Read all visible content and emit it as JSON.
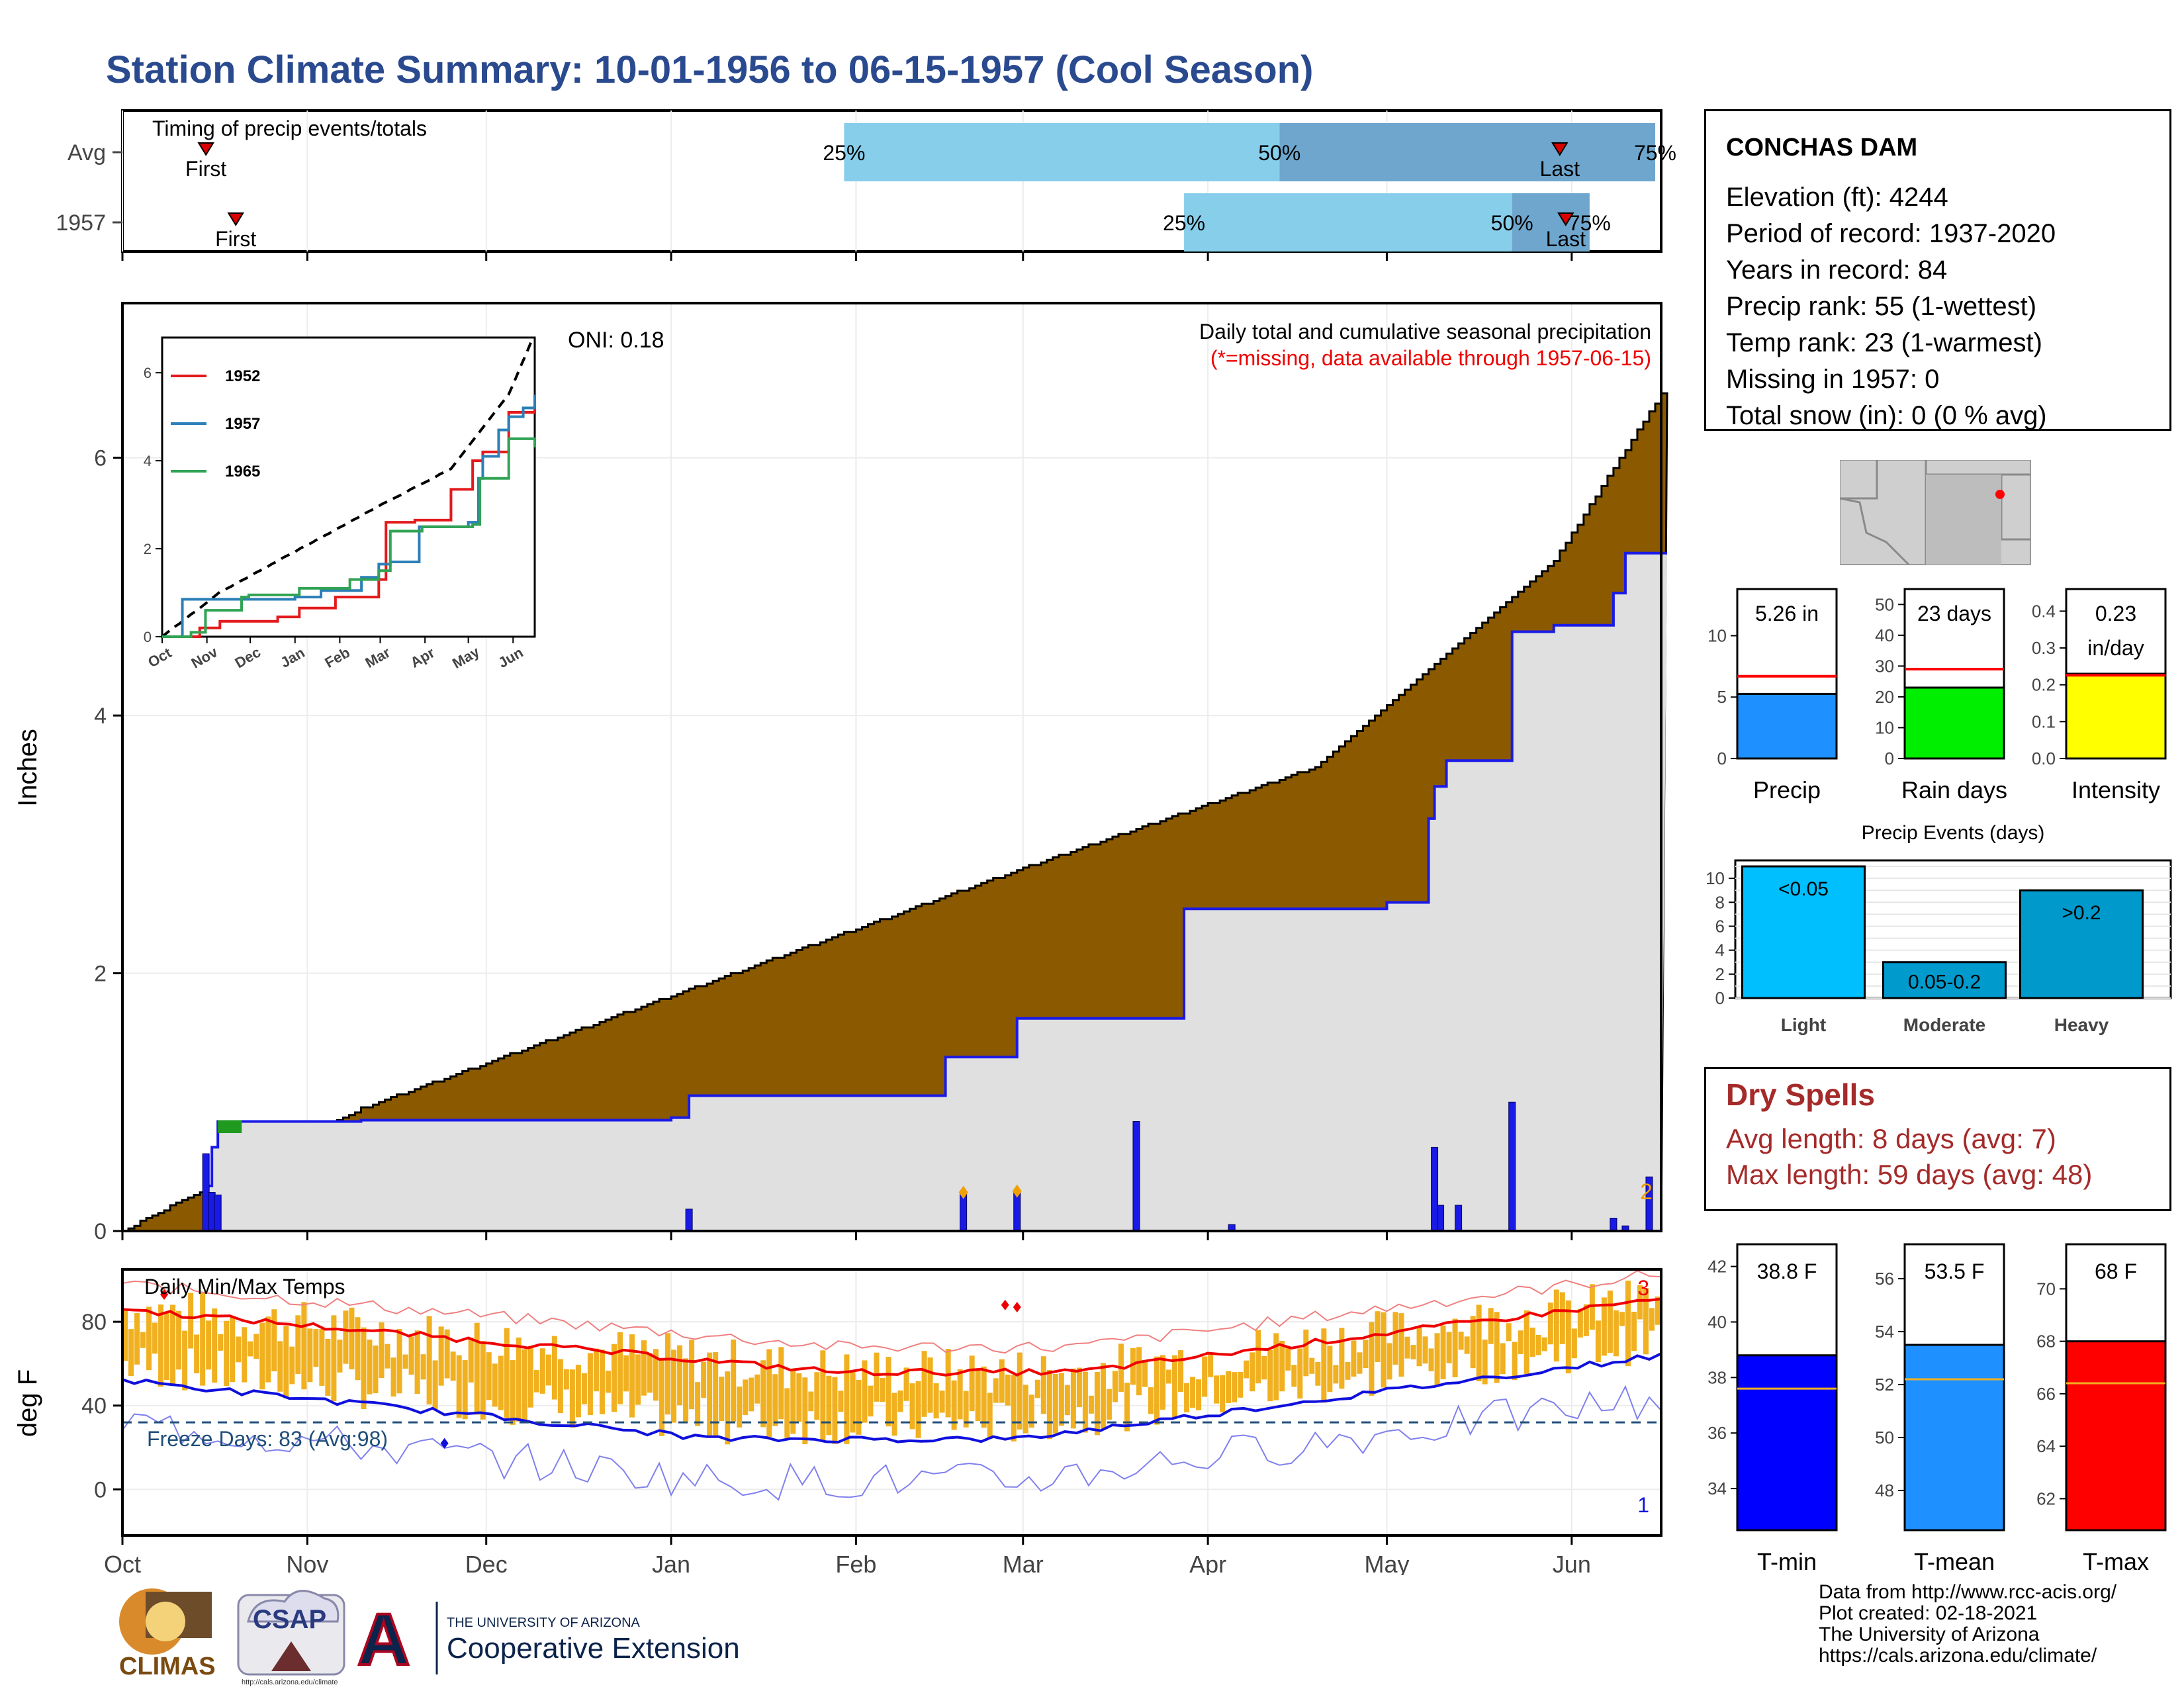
{
  "title": "Station Climate Summary: 10-01-1956 to 06-15-1957 (Cool Season)",
  "timing_panel": {
    "label": "Timing of precip events/totals",
    "rows": [
      {
        "name": "Avg",
        "first_label": "First",
        "last_label": "Last",
        "first_day": 14,
        "last_day": 241,
        "p25_day": 121,
        "p50_day": 194,
        "p75_day": 257,
        "p25_label": "25%",
        "p50_label": "50%",
        "p75_label": "75%"
      },
      {
        "name": "1957",
        "first_label": "First",
        "last_label": "Last",
        "first_day": 19,
        "last_day": 242,
        "p25_day": 178,
        "p50_day": 233,
        "p75_day": 246,
        "p25_label": "25%",
        "p50_label": "50%",
        "p75_label": "75%"
      }
    ],
    "colors": {
      "light": "#87ceeb",
      "dark": "#6ea6cd",
      "marker": "#d90000"
    }
  },
  "precip_panel": {
    "ylabel": "Inches",
    "yticks": [
      0,
      2,
      4,
      6
    ],
    "ylim": [
      0,
      7.2
    ],
    "title_line1": "Daily total and cumulative seasonal precipitation",
    "title_line2": "(*=missing, data available through 1957-06-15)",
    "oni": "ONI: 0.18",
    "count_label": "2",
    "colors": {
      "avg_fill": "#8b5a00",
      "year_fill": "#e0e0e0",
      "year_line": "#1a1ae6",
      "surplus_fill": "#1f9a1f",
      "missing_marker": "#f0a000"
    }
  },
  "inset": {
    "x_labels": [
      "Oct",
      "Nov",
      "Dec",
      "Jan",
      "Feb",
      "Mar",
      "Apr",
      "May",
      "Jun"
    ],
    "y_ticks": [
      0,
      2,
      4,
      6
    ],
    "legend": [
      {
        "name": "1952",
        "color": "#e31a1c"
      },
      {
        "name": "1957",
        "color": "#2c7fb8"
      },
      {
        "name": "1965",
        "color": "#31a354"
      }
    ]
  },
  "temp_panel": {
    "ylabel": "deg F",
    "yticks": [
      0,
      40,
      80
    ],
    "ylim": [
      -22,
      105
    ],
    "label": "Daily Min/Max Temps",
    "freeze_label": "Freeze Days: 83 (Avg:98)",
    "max_count_label": "3",
    "min_count_label": "1",
    "freeze_line": 32,
    "month_labels": [
      "Oct",
      "Nov",
      "Dec",
      "Jan",
      "Feb",
      "Mar",
      "Apr",
      "May",
      "Jun"
    ],
    "colors": {
      "bars": "#f0b020",
      "avg_max": "#ee0000",
      "avg_min": "#1010dd",
      "rec_max": "#f08080",
      "rec_min": "#8080ee",
      "freeze": "#1f4e79"
    }
  },
  "station": {
    "name": "CONCHAS DAM",
    "lines": [
      "Elevation (ft): 4244",
      "Period of record: 1937-2020",
      "Years in record: 84",
      "Precip rank: 55 (1-wettest)",
      "Temp rank: 23 (1-warmest)",
      "Missing in 1957: 0",
      "Total snow (in): 0 (0 % avg)"
    ]
  },
  "small_bars": [
    {
      "label": "Precip",
      "value": 5.26,
      "value_text": "5.26 in",
      "avg": 6.7,
      "ylim": [
        0,
        13.8
      ],
      "ticks": [
        0,
        5,
        10
      ],
      "color": "#1e90ff"
    },
    {
      "label": "Rain days",
      "value": 23,
      "value_text": "23 days",
      "avg": 29,
      "ylim": [
        0,
        55
      ],
      "ticks": [
        0,
        10,
        20,
        30,
        40,
        50
      ],
      "color": "#00ee00"
    },
    {
      "label": "Intensity",
      "value": 0.23,
      "value_text": "0.23 in/day",
      "avg": 0.226,
      "ylim": [
        0,
        0.46
      ],
      "ticks": [
        "0.0",
        "0.1",
        "0.2",
        "0.3",
        "0.4"
      ],
      "color": "#ffff00"
    }
  ],
  "precip_events": {
    "title": "Precip Events (days)",
    "categories": [
      "Light",
      "Moderate",
      "Heavy"
    ],
    "bar_labels": [
      "<0.05",
      "0.05-0.2",
      ">0.2"
    ],
    "values": [
      11,
      3,
      9
    ],
    "ticks": [
      0,
      2,
      4,
      6,
      8,
      10
    ],
    "ylim": [
      0,
      11.5
    ],
    "colors": [
      "#00bfff",
      "#009acd",
      "#0099cc"
    ]
  },
  "dry_spells": {
    "title": "Dry Spells",
    "avg_line": "Avg length: 8 days (avg: 7)",
    "max_line": "Max length: 59 days (avg: 48)"
  },
  "temp_bars": [
    {
      "label": "T-min",
      "value": 38.8,
      "value_text": "38.8 F",
      "avg": 37.6,
      "ylim": [
        32.5,
        42.8
      ],
      "ticks": [
        34,
        36,
        38,
        40,
        42
      ],
      "color": "#0000ff"
    },
    {
      "label": "T-mean",
      "value": 53.5,
      "value_text": "53.5 F",
      "avg": 52.2,
      "ylim": [
        46.5,
        57.3
      ],
      "ticks": [
        48,
        50,
        52,
        54,
        56
      ],
      "color": "#1e90ff"
    },
    {
      "label": "T-max",
      "value": 68,
      "value_text": "68 F",
      "avg": 66.4,
      "ylim": [
        60.8,
        71.7
      ],
      "ticks": [
        62,
        64,
        66,
        68,
        70
      ],
      "color": "#ff0000"
    }
  ],
  "credits": [
    "Data from http://www.rcc-acis.org/",
    "Plot created: 02-18-2021",
    "The University of Arizona",
    "https://cals.arizona.edu/climate/"
  ],
  "logos": {
    "climas": "CLIMAS",
    "csap": "CSAP",
    "csap_url": "http://cals.arizona.edu/climate",
    "ua_small": "THE UNIVERSITY OF ARIZONA",
    "ua_big": "Cooperative Extension"
  }
}
